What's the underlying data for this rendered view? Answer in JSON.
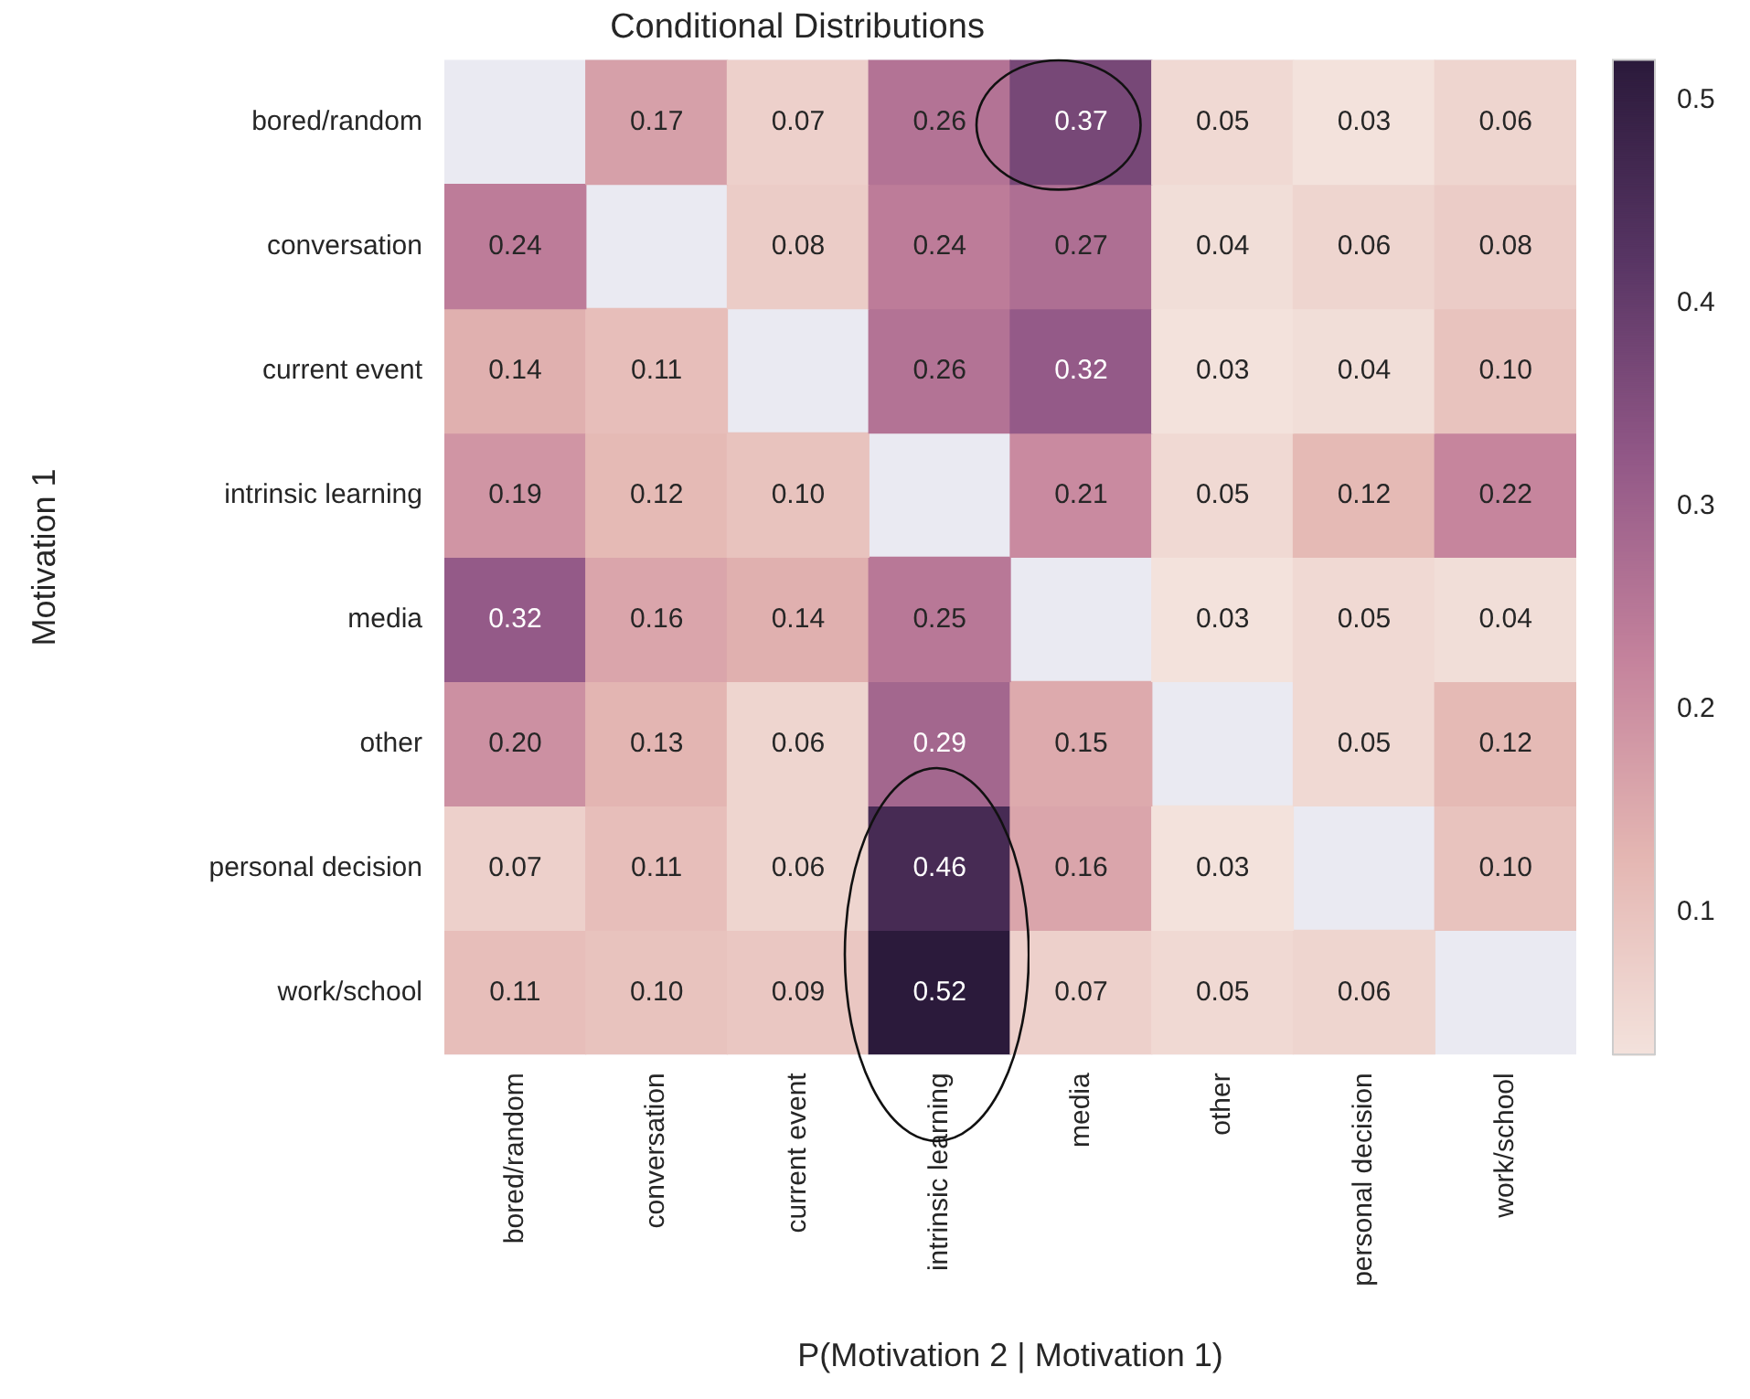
{
  "chart_data": {
    "type": "heatmap",
    "title": "Conditional Distributions",
    "xlabel": "P(Motivation 2 | Motivation 1)",
    "ylabel": "Motivation 1",
    "categories": [
      "bored/random",
      "conversation",
      "current event",
      "intrinsic learning",
      "media",
      "other",
      "personal decision",
      "work/school"
    ],
    "y_categories": [
      "bored/random",
      "conversation",
      "current event",
      "intrinsic learning",
      "media",
      "other",
      "personal decision",
      "work/school"
    ],
    "cells": [
      [
        null,
        0.17,
        0.07,
        0.26,
        0.37,
        0.05,
        0.03,
        0.06
      ],
      [
        0.24,
        null,
        0.08,
        0.24,
        0.27,
        0.04,
        0.06,
        0.08
      ],
      [
        0.14,
        0.11,
        null,
        0.26,
        0.32,
        0.03,
        0.04,
        0.1
      ],
      [
        0.19,
        0.12,
        0.1,
        null,
        0.21,
        0.05,
        0.12,
        0.22
      ],
      [
        0.32,
        0.16,
        0.14,
        0.25,
        null,
        0.03,
        0.05,
        0.04
      ],
      [
        0.2,
        0.13,
        0.06,
        0.29,
        0.15,
        null,
        0.05,
        0.12
      ],
      [
        0.07,
        0.11,
        0.06,
        0.46,
        0.16,
        0.03,
        null,
        0.1
      ],
      [
        0.11,
        0.1,
        0.09,
        0.52,
        0.07,
        0.05,
        0.06,
        null
      ]
    ],
    "cell_labels": [
      [
        null,
        "0.17",
        "0.07",
        "0.26",
        "0.37",
        "0.05",
        "0.03",
        "0.06"
      ],
      [
        "0.24",
        null,
        "0.08",
        "0.24",
        "0.27",
        "0.04",
        "0.06",
        "0.08"
      ],
      [
        "0.14",
        "0.11",
        null,
        "0.26",
        "0.32",
        "0.03",
        "0.04",
        "0.10"
      ],
      [
        "0.19",
        "0.12",
        "0.10",
        null,
        "0.21",
        "0.05",
        "0.12",
        "0.22"
      ],
      [
        "0.32",
        "0.16",
        "0.14",
        "0.25",
        null,
        "0.03",
        "0.05",
        "0.04"
      ],
      [
        "0.20",
        "0.13",
        "0.06",
        "0.29",
        "0.15",
        null,
        "0.05",
        "0.12"
      ],
      [
        "0.07",
        "0.11",
        "0.06",
        "0.46",
        "0.16",
        "0.03",
        null,
        "0.10"
      ],
      [
        "0.11",
        "0.10",
        "0.09",
        "0.52",
        "0.07",
        "0.05",
        "0.06",
        null
      ]
    ],
    "clim": [
      0.03,
      0.52
    ],
    "cticks": [
      0.1,
      0.2,
      0.3,
      0.4,
      0.5
    ],
    "grid": false,
    "legend": false
  }
}
